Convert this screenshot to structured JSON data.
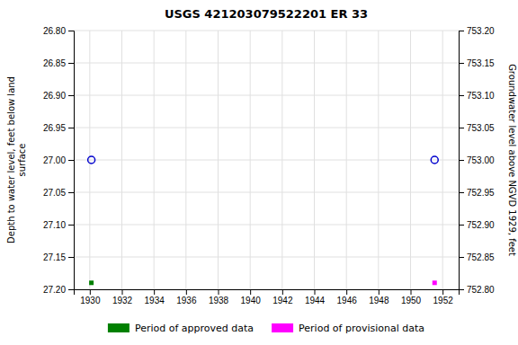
{
  "chart_data": {
    "type": "scatter",
    "title": "USGS 421203079522201 ER    33",
    "ylabel": "Depth to water level, feet below land\nsurface",
    "y2label": "Groundwater level above NGVD 1929, feet",
    "xlim": [
      1929,
      1953
    ],
    "xticks": [
      1930,
      1932,
      1934,
      1936,
      1938,
      1940,
      1942,
      1944,
      1946,
      1948,
      1950,
      1952
    ],
    "ylim": [
      27.2,
      26.8
    ],
    "yticks": [
      {
        "value": 26.8,
        "label": "26.80"
      },
      {
        "value": 26.85,
        "label": "26.85"
      },
      {
        "value": 26.9,
        "label": "26.90"
      },
      {
        "value": 26.95,
        "label": "26.95"
      },
      {
        "value": 27.0,
        "label": "27.00"
      },
      {
        "value": 27.05,
        "label": "27.05"
      },
      {
        "value": 27.1,
        "label": "27.10"
      },
      {
        "value": 27.15,
        "label": "27.15"
      },
      {
        "value": 27.2,
        "label": "27.20"
      }
    ],
    "y2lim": [
      752.8,
      753.2
    ],
    "y2ticks": [
      {
        "value": 753.2,
        "label": "753.20"
      },
      {
        "value": 753.15,
        "label": "753.15"
      },
      {
        "value": 753.1,
        "label": "753.10"
      },
      {
        "value": 753.05,
        "label": "753.05"
      },
      {
        "value": 753.0,
        "label": "753.00"
      },
      {
        "value": 752.95,
        "label": "752.95"
      },
      {
        "value": 752.9,
        "label": "752.90"
      },
      {
        "value": 752.85,
        "label": "752.85"
      },
      {
        "value": 752.8,
        "label": "752.80"
      }
    ],
    "grid": true,
    "legend": "bottom",
    "series": [
      {
        "name": "Period of approved data",
        "color": "#008000",
        "marker": "square",
        "x": [
          1930.1
        ],
        "values": [
          27.19
        ]
      },
      {
        "name": "Period of provisional data",
        "color": "#ff00ff",
        "marker": "square",
        "x": [
          1951.5
        ],
        "values": [
          27.19
        ]
      },
      {
        "color": "#0000cd",
        "marker": "open-circle",
        "x": [
          1930.1,
          1951.5
        ],
        "values": [
          27.0,
          27.0
        ]
      }
    ]
  }
}
